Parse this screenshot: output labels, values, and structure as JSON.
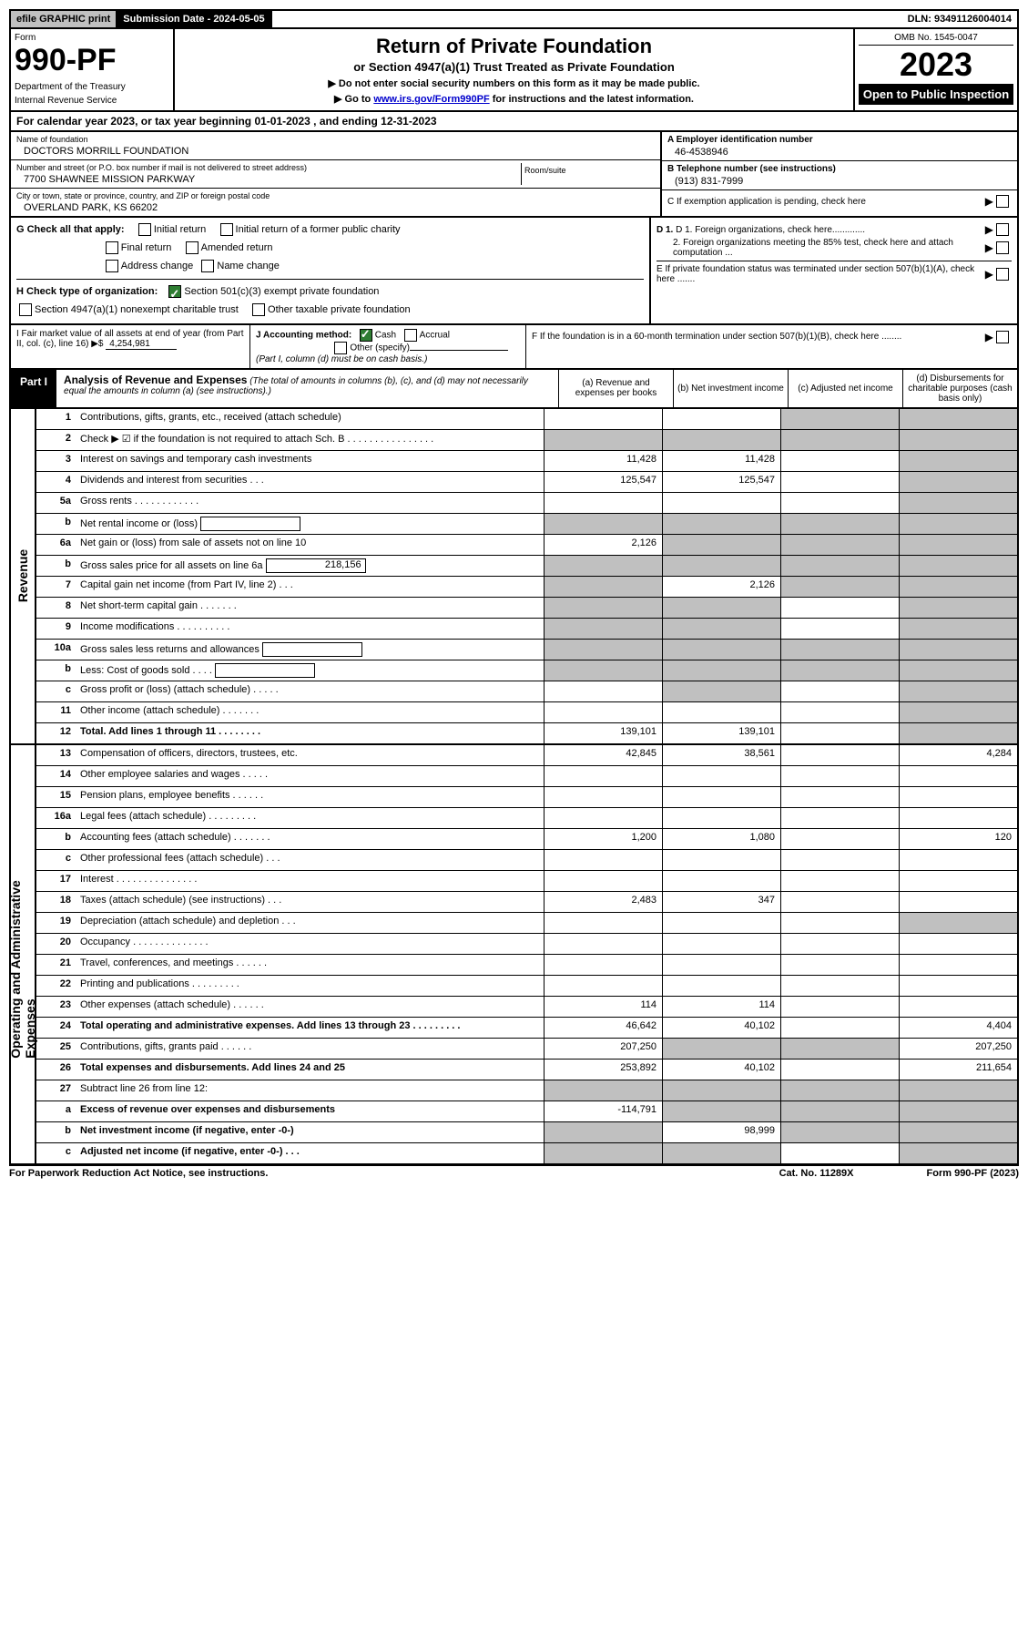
{
  "top": {
    "efile": "efile GRAPHIC print",
    "sub_label": "Submission Date - 2024-05-05",
    "dln": "DLN: 93491126004014"
  },
  "header": {
    "form": "Form",
    "num": "990-PF",
    "dept": "Department of the Treasury",
    "irs": "Internal Revenue Service",
    "title": "Return of Private Foundation",
    "sub1": "or Section 4947(a)(1) Trust Treated as Private Foundation",
    "sub2a": "▶ Do not enter social security numbers on this form as it may be made public.",
    "sub2b": "▶ Go to ",
    "link": "www.irs.gov/Form990PF",
    "sub2c": " for instructions and the latest information.",
    "omb": "OMB No. 1545-0047",
    "year": "2023",
    "otp": "Open to Public Inspection"
  },
  "cal": "For calendar year 2023, or tax year beginning 01-01-2023                              , and ending 12-31-2023",
  "info": {
    "name_lbl": "Name of foundation",
    "name": "DOCTORS MORRILL FOUNDATION",
    "addr_lbl": "Number and street (or P.O. box number if mail is not delivered to street address)",
    "addr": "7700 SHAWNEE MISSION PARKWAY",
    "room": "Room/suite",
    "city_lbl": "City or town, state or province, country, and ZIP or foreign postal code",
    "city": "OVERLAND PARK, KS  66202",
    "a_lbl": "A Employer identification number",
    "a_val": "46-4538946",
    "b_lbl": "B Telephone number (see instructions)",
    "b_val": "(913) 831-7999",
    "c_lbl": "C If exemption application is pending, check here"
  },
  "checks": {
    "g": "G Check all that apply:",
    "g_opts": [
      "Initial return",
      "Initial return of a former public charity",
      "Final return",
      "Amended return",
      "Address change",
      "Name change"
    ],
    "h": "H Check type of organization:",
    "h1": "Section 501(c)(3) exempt private foundation",
    "h2": "Section 4947(a)(1) nonexempt charitable trust",
    "h3": "Other taxable private foundation",
    "d1": "D 1. Foreign organizations, check here.............",
    "d2": "2. Foreign organizations meeting the 85% test, check here and attach computation ...",
    "e": "E  If private foundation status was terminated under section 507(b)(1)(A), check here .......",
    "i": "I Fair market value of all assets at end of year (from Part II, col. (c), line 16) ▶$",
    "i_val": "4,254,981",
    "j": "J Accounting method:",
    "j_cash": "Cash",
    "j_acc": "Accrual",
    "j_other": "Other (specify)",
    "j_note": "(Part I, column (d) must be on cash basis.)",
    "f": "F  If the foundation is in a 60-month termination under section 507(b)(1)(B), check here ........"
  },
  "part1": {
    "label": "Part I",
    "title": "Analysis of Revenue and Expenses",
    "note": "(The total of amounts in columns (b), (c), and (d) may not necessarily equal the amounts in column (a) (see instructions).)",
    "cols": {
      "a": "(a)   Revenue and expenses per books",
      "b": "(b)   Net investment income",
      "c": "(c)   Adjusted net income",
      "d": "(d)  Disbursements for charitable purposes (cash basis only)"
    }
  },
  "side_rev": "Revenue",
  "side_exp": "Operating and Administrative Expenses",
  "rows_rev": [
    {
      "n": "1",
      "d": "Contributions, gifts, grants, etc., received (attach schedule)",
      "a": "",
      "b": "",
      "c": "grey",
      "dg": "grey"
    },
    {
      "n": "2",
      "d": "Check ▶ ☑ if the foundation is not required to attach Sch. B   .  .  .  .  .  .  .  .  .  .  .  .  .  .  .  .",
      "a": "grey",
      "b": "grey",
      "c": "grey",
      "dg": "grey"
    },
    {
      "n": "3",
      "d": "Interest on savings and temporary cash investments",
      "a": "11,428",
      "b": "11,428",
      "c": "",
      "dg": "grey"
    },
    {
      "n": "4",
      "d": "Dividends and interest from securities   .   .   .",
      "a": "125,547",
      "b": "125,547",
      "c": "",
      "dg": "grey"
    },
    {
      "n": "5a",
      "d": "Gross rents   .   .   .   .   .   .   .   .   .   .   .   .",
      "a": "",
      "b": "",
      "c": "",
      "dg": "grey"
    },
    {
      "n": "b",
      "d": "Net rental income or (loss)",
      "a": "grey",
      "b": "grey",
      "c": "grey",
      "dg": "grey",
      "inline": ""
    },
    {
      "n": "6a",
      "d": "Net gain or (loss) from sale of assets not on line 10",
      "a": "2,126",
      "b": "grey",
      "c": "grey",
      "dg": "grey"
    },
    {
      "n": "b",
      "d": "Gross sales price for all assets on line 6a",
      "a": "grey",
      "b": "grey",
      "c": "grey",
      "dg": "grey",
      "inline": "218,156"
    },
    {
      "n": "7",
      "d": "Capital gain net income (from Part IV, line 2)   .   .   .",
      "a": "grey",
      "b": "2,126",
      "c": "grey",
      "dg": "grey"
    },
    {
      "n": "8",
      "d": "Net short-term capital gain   .   .   .   .   .   .   .",
      "a": "grey",
      "b": "grey",
      "c": "",
      "dg": "grey"
    },
    {
      "n": "9",
      "d": "Income modifications  .   .   .   .   .   .   .   .   .   .",
      "a": "grey",
      "b": "grey",
      "c": "",
      "dg": "grey"
    },
    {
      "n": "10a",
      "d": "Gross sales less returns and allowances",
      "a": "grey",
      "b": "grey",
      "c": "grey",
      "dg": "grey",
      "inline": ""
    },
    {
      "n": "b",
      "d": "Less: Cost of goods sold   .   .   .   .",
      "a": "grey",
      "b": "grey",
      "c": "grey",
      "dg": "grey",
      "inline": ""
    },
    {
      "n": "c",
      "d": "Gross profit or (loss) (attach schedule)   .   .   .   .   .",
      "a": "",
      "b": "grey",
      "c": "",
      "dg": "grey"
    },
    {
      "n": "11",
      "d": "Other income (attach schedule)   .   .   .   .   .   .   .",
      "a": "",
      "b": "",
      "c": "",
      "dg": "grey"
    },
    {
      "n": "12",
      "d": "Total. Add lines 1 through 11   .   .   .   .   .   .   .   .",
      "bold": true,
      "a": "139,101",
      "b": "139,101",
      "c": "",
      "dg": "grey"
    }
  ],
  "rows_exp": [
    {
      "n": "13",
      "d": "Compensation of officers, directors, trustees, etc.",
      "a": "42,845",
      "b": "38,561",
      "c": "",
      "dv": "4,284"
    },
    {
      "n": "14",
      "d": "Other employee salaries and wages   .   .   .   .   .",
      "a": "",
      "b": "",
      "c": "",
      "dv": ""
    },
    {
      "n": "15",
      "d": "Pension plans, employee benefits   .   .   .   .   .   .",
      "a": "",
      "b": "",
      "c": "",
      "dv": ""
    },
    {
      "n": "16a",
      "d": "Legal fees (attach schedule)  .   .   .   .   .   .   .   .   .",
      "a": "",
      "b": "",
      "c": "",
      "dv": ""
    },
    {
      "n": "b",
      "d": "Accounting fees (attach schedule)  .   .   .   .   .   .   .",
      "a": "1,200",
      "b": "1,080",
      "c": "",
      "dv": "120"
    },
    {
      "n": "c",
      "d": "Other professional fees (attach schedule)   .   .   .",
      "a": "",
      "b": "",
      "c": "",
      "dv": ""
    },
    {
      "n": "17",
      "d": "Interest  .   .   .   .   .   .   .   .   .   .   .   .   .   .   .",
      "a": "",
      "b": "",
      "c": "",
      "dv": ""
    },
    {
      "n": "18",
      "d": "Taxes (attach schedule) (see instructions)   .   .   .",
      "a": "2,483",
      "b": "347",
      "c": "",
      "dv": ""
    },
    {
      "n": "19",
      "d": "Depreciation (attach schedule) and depletion   .   .   .",
      "a": "",
      "b": "",
      "c": "",
      "dg": "grey"
    },
    {
      "n": "20",
      "d": "Occupancy  .   .   .   .   .   .   .   .   .   .   .   .   .   .",
      "a": "",
      "b": "",
      "c": "",
      "dv": ""
    },
    {
      "n": "21",
      "d": "Travel, conferences, and meetings  .   .   .   .   .   .",
      "a": "",
      "b": "",
      "c": "",
      "dv": ""
    },
    {
      "n": "22",
      "d": "Printing and publications  .   .   .   .   .   .   .   .   .",
      "a": "",
      "b": "",
      "c": "",
      "dv": ""
    },
    {
      "n": "23",
      "d": "Other expenses (attach schedule)  .   .   .   .   .   .",
      "a": "114",
      "b": "114",
      "c": "",
      "dv": ""
    },
    {
      "n": "24",
      "d": "Total operating and administrative expenses. Add lines 13 through 23   .   .   .   .   .   .   .   .   .",
      "bold": true,
      "a": "46,642",
      "b": "40,102",
      "c": "",
      "dv": "4,404"
    },
    {
      "n": "25",
      "d": "Contributions, gifts, grants paid   .   .   .   .   .   .",
      "a": "207,250",
      "b": "grey",
      "c": "grey",
      "dv": "207,250"
    },
    {
      "n": "26",
      "d": "Total expenses and disbursements. Add lines 24 and 25",
      "bold": true,
      "a": "253,892",
      "b": "40,102",
      "c": "",
      "dv": "211,654"
    },
    {
      "n": "27",
      "d": "Subtract line 26 from line 12:",
      "a": "grey",
      "b": "grey",
      "c": "grey",
      "dg": "grey"
    },
    {
      "n": "a",
      "d": "Excess of revenue over expenses and disbursements",
      "bold": true,
      "a": "-114,791",
      "b": "grey",
      "c": "grey",
      "dg": "grey"
    },
    {
      "n": "b",
      "d": "Net investment income (if negative, enter -0-)",
      "bold": true,
      "a": "grey",
      "b": "98,999",
      "c": "grey",
      "dg": "grey"
    },
    {
      "n": "c",
      "d": "Adjusted net income (if negative, enter -0-)   .   .   .",
      "bold": true,
      "a": "grey",
      "b": "grey",
      "c": "",
      "dg": "grey"
    }
  ],
  "footer": {
    "l": "For Paperwork Reduction Act Notice, see instructions.",
    "m": "Cat. No. 11289X",
    "r": "Form 990-PF (2023)"
  }
}
